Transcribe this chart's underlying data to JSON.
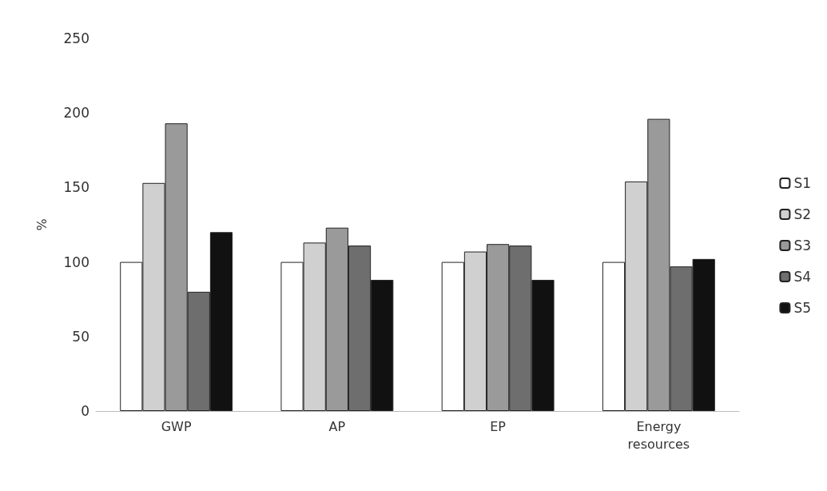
{
  "chart_data": {
    "type": "bar",
    "ylabel": "%",
    "categories": [
      "GWP",
      "AP",
      "EP",
      "Energy\nresources"
    ],
    "series": [
      {
        "name": "S1",
        "color": "#ffffff",
        "values": [
          100,
          100,
          100,
          100
        ]
      },
      {
        "name": "S2",
        "color": "#d0d0d0",
        "values": [
          153,
          113,
          107,
          154
        ]
      },
      {
        "name": "S3",
        "color": "#9a9a9a",
        "values": [
          193,
          123,
          112,
          196
        ]
      },
      {
        "name": "S4",
        "color": "#6e6e6e",
        "values": [
          80,
          111,
          111,
          97
        ]
      },
      {
        "name": "S5",
        "color": "#111111",
        "values": [
          120,
          88,
          88,
          102
        ]
      }
    ],
    "ylim": [
      0,
      250
    ],
    "yticks": [
      0,
      50,
      100,
      150,
      200,
      250
    ],
    "grid": false,
    "legend": "right"
  }
}
